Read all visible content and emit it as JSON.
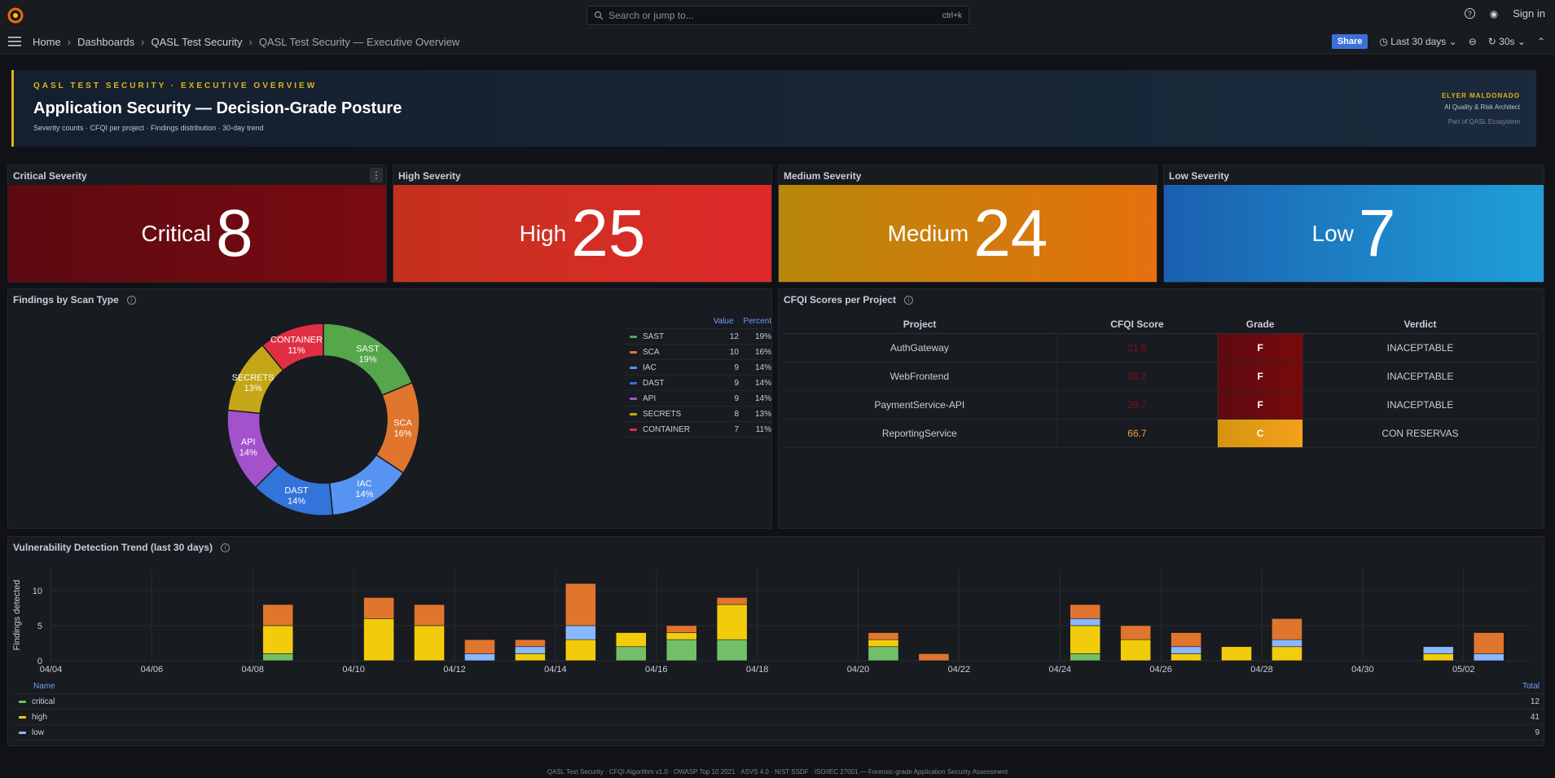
{
  "topbar": {
    "search_placeholder": "Search or jump to...",
    "search_shortcut": "ctrl+k",
    "sign_in": "Sign in"
  },
  "breadcrumb": [
    "Home",
    "Dashboards",
    "QASL Test Security",
    "QASL Test Security — Executive Overview"
  ],
  "toolbar": {
    "share": "Share",
    "time_range": "Last 30 days",
    "refresh": "30s"
  },
  "banner": {
    "overline": "QASL TEST SECURITY · EXECUTIVE OVERVIEW",
    "title": "Application Security — Decision-Grade Posture",
    "subtitle": "Severity counts · CFQI per project · Findings distribution · 30-day trend",
    "author": "ELYER MALDONADO",
    "role": "AI Quality & Risk Architect",
    "ecosystem": "Part of QASL Ecosystem"
  },
  "stats": [
    {
      "title": "Critical Severity",
      "label": "Critical",
      "value": "8"
    },
    {
      "title": "High Severity",
      "label": "High",
      "value": "25"
    },
    {
      "title": "Medium Severity",
      "label": "Medium",
      "value": "24"
    },
    {
      "title": "Low Severity",
      "label": "Low",
      "value": "7"
    }
  ],
  "colors": {
    "critical": "#7a0a12",
    "high": "#e02f2f",
    "medium": "#e6860f",
    "low": "#1f8fd6",
    "accent": "#e0b414"
  },
  "scan_panel": {
    "title": "Findings by Scan Type",
    "col_value": "Value",
    "col_percent": "Percent"
  },
  "cfqi_panel": {
    "title": "CFQI Scores per Project",
    "headers": [
      "Project",
      "CFQI Score",
      "Grade",
      "Verdict"
    ],
    "rows": [
      {
        "project": "AuthGateway",
        "score": "21.8",
        "grade": "F",
        "verdict": "INACEPTABLE"
      },
      {
        "project": "WebFrontend",
        "score": "36.2",
        "grade": "F",
        "verdict": "INACEPTABLE"
      },
      {
        "project": "PaymentService-API",
        "score": "28.7",
        "grade": "F",
        "verdict": "INACEPTABLE"
      },
      {
        "project": "ReportingService",
        "score": "66.7",
        "grade": "C",
        "verdict": "CON RESERVAS"
      }
    ]
  },
  "trend_panel": {
    "title": "Vulnerability Detection Trend (last 30 days)",
    "legend_name": "Name",
    "legend_total": "Total",
    "legend": [
      {
        "name": "critical",
        "total": "12",
        "color": "#73bf69"
      },
      {
        "name": "high",
        "total": "41",
        "color": "#f2cc0c"
      },
      {
        "name": "low",
        "total": "9",
        "color": "#8ab8ff"
      }
    ]
  },
  "footer": "QASL Test Security · CFQI Algorithm v1.0 · OWASP Top 10 2021 · ASVS 4.0 · NIST SSDF · ISO/IEC 27001 — Forensic-grade Application Security Assessment",
  "chart_data": [
    {
      "type": "pie",
      "title": "Findings by Scan Type",
      "donut": true,
      "slices": [
        {
          "label": "SAST",
          "value": 12,
          "percent": "19%",
          "color": "#56a64b"
        },
        {
          "label": "SCA",
          "value": 10,
          "percent": "16%",
          "color": "#e0752d"
        },
        {
          "label": "IAC",
          "value": 9,
          "percent": "14%",
          "color": "#5794f2"
        },
        {
          "label": "DAST",
          "value": 9,
          "percent": "14%",
          "color": "#3274d9"
        },
        {
          "label": "API",
          "value": 9,
          "percent": "14%",
          "color": "#a352cc"
        },
        {
          "label": "SECRETS",
          "value": 8,
          "percent": "13%",
          "color": "#c4a718"
        },
        {
          "label": "CONTAINER",
          "value": 7,
          "percent": "11%",
          "color": "#e02f44"
        }
      ]
    },
    {
      "type": "bar",
      "stacked": true,
      "title": "Vulnerability Detection Trend (last 30 days)",
      "ylabel": "Findings detected",
      "ylim": [
        0,
        13
      ],
      "yticks": [
        0,
        5,
        10
      ],
      "xticks": [
        "04/04",
        "04/06",
        "04/08",
        "04/10",
        "04/12",
        "04/14",
        "04/16",
        "04/18",
        "04/20",
        "04/22",
        "04/24",
        "04/26",
        "04/28",
        "04/30",
        "05/02"
      ],
      "categories": [
        "04/04",
        "04/05",
        "04/06",
        "04/07",
        "04/08",
        "04/09",
        "04/10",
        "04/11",
        "04/12",
        "04/13",
        "04/14",
        "04/15",
        "04/16",
        "04/17",
        "04/18",
        "04/19",
        "04/20",
        "04/21",
        "04/22",
        "04/23",
        "04/24",
        "04/25",
        "04/26",
        "04/27",
        "04/28",
        "04/29",
        "04/30",
        "05/01",
        "05/02"
      ],
      "series": [
        {
          "name": "critical",
          "color": "#73bf69",
          "values": [
            0,
            0,
            0,
            0,
            1,
            0,
            0,
            0,
            0,
            0,
            0,
            2,
            3,
            3,
            0,
            0,
            2,
            0,
            0,
            0,
            1,
            0,
            0,
            0,
            0,
            0,
            0,
            0,
            0
          ]
        },
        {
          "name": "high",
          "color": "#f2cc0c",
          "values": [
            0,
            0,
            0,
            0,
            4,
            0,
            6,
            5,
            0,
            1,
            3,
            2,
            1,
            5,
            0,
            0,
            1,
            0,
            0,
            0,
            4,
            3,
            1,
            2,
            2,
            0,
            0,
            1,
            0
          ]
        },
        {
          "name": "low",
          "color": "#8ab8ff",
          "values": [
            0,
            0,
            0,
            0,
            0,
            0,
            0,
            0,
            1,
            1,
            2,
            0,
            0,
            0,
            0,
            0,
            0,
            0,
            0,
            0,
            1,
            0,
            1,
            0,
            1,
            0,
            0,
            1,
            1
          ]
        },
        {
          "color": "#e0752d",
          "values": [
            0,
            0,
            0,
            0,
            3,
            0,
            3,
            3,
            2,
            1,
            6,
            0,
            1,
            1,
            0,
            0,
            1,
            1,
            0,
            0,
            2,
            2,
            2,
            0,
            3,
            0,
            0,
            0,
            3
          ]
        }
      ]
    }
  ]
}
